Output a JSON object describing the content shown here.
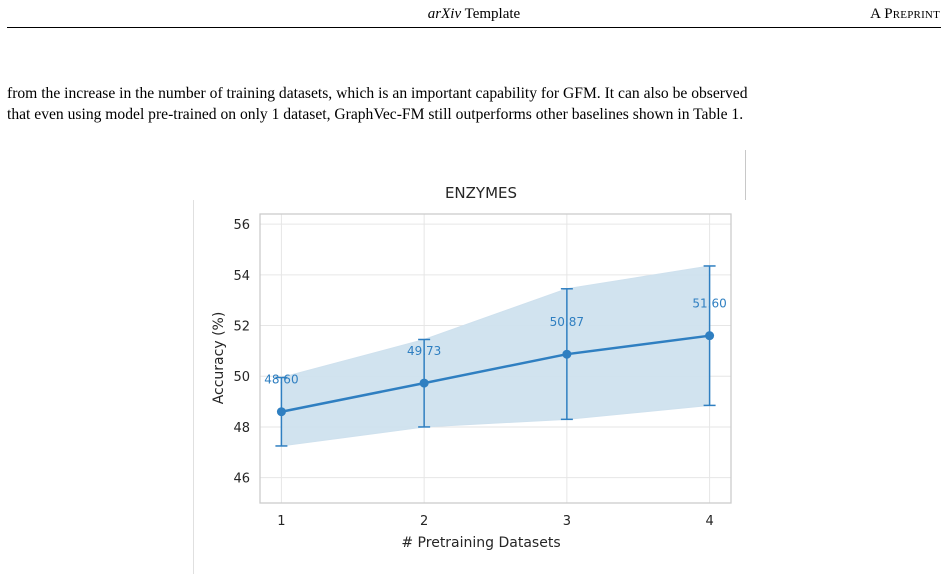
{
  "header": {
    "title_italic": "arXiv",
    "title_rest": " Template",
    "right_label": "A Preprint"
  },
  "body": {
    "line1": "from the increase in the number of training datasets, which is an important capability for GFM. It can also be observed",
    "line2": "that even using model pre-trained on only 1 dataset, GraphVec-FM still outperforms other baselines shown in Table 1."
  },
  "chart_data": {
    "type": "line",
    "title": "ENZYMES",
    "xlabel": "# Pretraining Datasets",
    "ylabel": "Accuracy (%)",
    "x": [
      1,
      2,
      3,
      4
    ],
    "xticks": [
      "1",
      "2",
      "3",
      "4"
    ],
    "ylim": [
      45.0,
      56.4
    ],
    "yticks": [
      46,
      48,
      50,
      52,
      54,
      56
    ],
    "ytick_labels": [
      "46",
      "48",
      "50",
      "52",
      "54",
      "56"
    ],
    "grid": true,
    "series": [
      {
        "values": [
          48.6,
          49.73,
          50.87,
          51.6
        ],
        "labels": [
          "48.60",
          "49.73",
          "50.87",
          "51.60"
        ],
        "err_low": [
          47.25,
          48.0,
          48.3,
          48.85
        ],
        "err_high": [
          49.95,
          51.45,
          53.45,
          54.35
        ],
        "color": "#2f7fc1",
        "band_color": "#cfe1ee"
      }
    ]
  }
}
